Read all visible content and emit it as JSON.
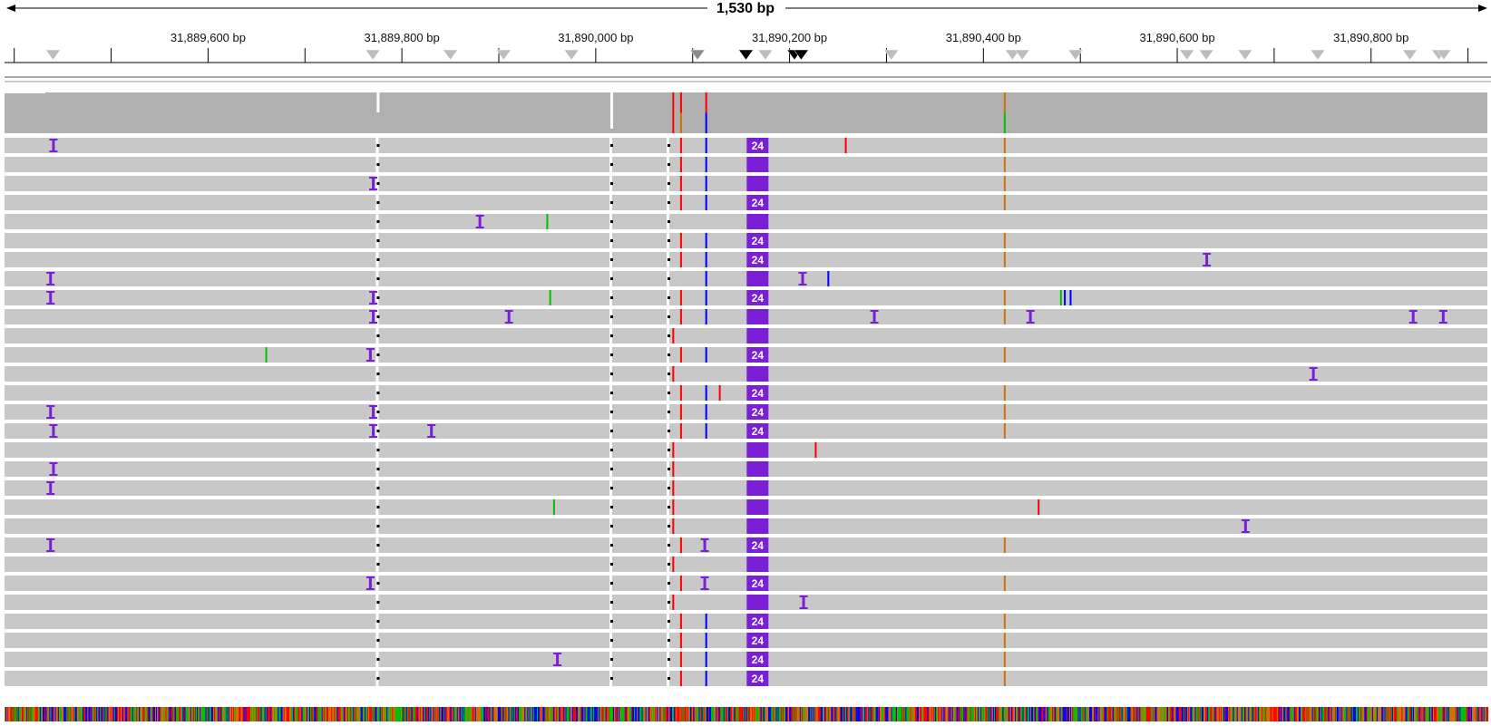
{
  "locus": {
    "span_label": "1,530 bp",
    "start_bp": 31889390,
    "end_bp": 31890920,
    "tick_labels": [
      {
        "bp": 31889600,
        "label": "31,889,600 bp"
      },
      {
        "bp": 31889800,
        "label": "31,889,800 bp"
      },
      {
        "bp": 31890000,
        "label": "31,890,000 bp"
      },
      {
        "bp": 31890200,
        "label": "31,890,200 bp"
      },
      {
        "bp": 31890400,
        "label": "31,890,400 bp"
      },
      {
        "bp": 31890600,
        "label": "31,890,600 bp"
      },
      {
        "bp": 31890800,
        "label": "31,890,800 bp"
      }
    ]
  },
  "colors": {
    "read": "#c8c8c8",
    "coverage": "#b0b0b0",
    "insertion": "#7a1fd6",
    "mismatch_A": "#00c000",
    "mismatch_C": "#0000ff",
    "mismatch_G": "#d17105",
    "mismatch_T": "#ff0000",
    "feature_marker_light": "#bdbdbd",
    "feature_marker_dark": "#000000"
  },
  "feature_markers": {
    "light": [
      31889440,
      31889770,
      31889850,
      31889905,
      31889975,
      31890175,
      31890305,
      31890430,
      31890440,
      31890495,
      31890610,
      31890630,
      31890670,
      31890745,
      31890840,
      31890870,
      31890875
    ],
    "grey": [
      31890105
    ],
    "dark": [
      31890155,
      31890205,
      31890212
    ]
  },
  "coverage_track": {
    "marks": [
      {
        "bp": 31890080,
        "base": "T"
      },
      {
        "bp": 31890088,
        "base": "T"
      },
      {
        "bp": 31890088,
        "base": "G"
      },
      {
        "bp": 31890114,
        "base": "T"
      },
      {
        "bp": 31890114,
        "base": "C"
      },
      {
        "bp": 31890422,
        "base": "G"
      },
      {
        "bp": 31890422,
        "base": "A"
      }
    ],
    "gaps": [
      31889775,
      31890016
    ]
  },
  "alignment": {
    "large_insertion_label": "24",
    "large_insertion_bp": 31890167,
    "rows": [
      {
        "big": "24",
        "ins": [
          31889440
        ],
        "mm": [
          [
            31890088,
            "T"
          ],
          [
            31890114,
            "C"
          ],
          [
            31890258,
            "T"
          ],
          [
            31890422,
            "G"
          ]
        ]
      },
      {
        "big": "",
        "ins": [],
        "mm": [
          [
            31890088,
            "T"
          ],
          [
            31890114,
            "C"
          ],
          [
            31890422,
            "G"
          ]
        ]
      },
      {
        "big": "",
        "ins": [
          31889770
        ],
        "mm": [
          [
            31890088,
            "T"
          ],
          [
            31890114,
            "C"
          ],
          [
            31890422,
            "G"
          ]
        ]
      },
      {
        "big": "24",
        "ins": [],
        "mm": [
          [
            31890088,
            "T"
          ],
          [
            31890114,
            "C"
          ],
          [
            31890422,
            "G"
          ]
        ]
      },
      {
        "big": "",
        "ins": [
          31889880
        ],
        "mm": [
          [
            31889950,
            "A"
          ]
        ]
      },
      {
        "big": "24",
        "ins": [],
        "mm": [
          [
            31890088,
            "T"
          ],
          [
            31890114,
            "C"
          ],
          [
            31890422,
            "G"
          ]
        ]
      },
      {
        "big": "24",
        "ins": [
          31890630
        ],
        "mm": [
          [
            31890088,
            "T"
          ],
          [
            31890114,
            "C"
          ],
          [
            31890422,
            "G"
          ]
        ]
      },
      {
        "big": "",
        "ins": [
          31889437,
          31890213
        ],
        "mm": [
          [
            31890114,
            "C"
          ],
          [
            31890240,
            "C"
          ]
        ]
      },
      {
        "big": "24",
        "ins": [
          31889437,
          31889770
        ],
        "mm": [
          [
            31889953,
            "A"
          ],
          [
            31890088,
            "T"
          ],
          [
            31890114,
            "C"
          ],
          [
            31890422,
            "G"
          ],
          [
            31890480,
            "A"
          ],
          [
            31890484,
            "C"
          ],
          [
            31890490,
            "C"
          ]
        ]
      },
      {
        "big": "",
        "ins": [
          31889770,
          31889910,
          31890287,
          31890448,
          31890843,
          31890874
        ],
        "mm": [
          [
            31890088,
            "T"
          ],
          [
            31890114,
            "C"
          ],
          [
            31890422,
            "G"
          ]
        ]
      },
      {
        "big": "",
        "ins": [],
        "mm": [
          [
            31890080,
            "T"
          ]
        ]
      },
      {
        "big": "24",
        "ins": [
          31889767
        ],
        "mm": [
          [
            31889660,
            "A"
          ],
          [
            31890088,
            "T"
          ],
          [
            31890114,
            "C"
          ],
          [
            31890422,
            "G"
          ]
        ]
      },
      {
        "big": "",
        "ins": [
          31890740
        ],
        "mm": [
          [
            31890080,
            "T"
          ]
        ]
      },
      {
        "big": "24",
        "ins": [],
        "mm": [
          [
            31890088,
            "T"
          ],
          [
            31890114,
            "C"
          ],
          [
            31890128,
            "T"
          ],
          [
            31890422,
            "G"
          ]
        ]
      },
      {
        "big": "24",
        "ins": [
          31889437,
          31889770
        ],
        "mm": [
          [
            31890088,
            "T"
          ],
          [
            31890114,
            "C"
          ],
          [
            31890422,
            "G"
          ]
        ]
      },
      {
        "big": "24",
        "ins": [
          31889440,
          31889770,
          31889830
        ],
        "mm": [
          [
            31890088,
            "T"
          ],
          [
            31890114,
            "C"
          ],
          [
            31890422,
            "G"
          ]
        ]
      },
      {
        "big": "",
        "ins": [],
        "mm": [
          [
            31890080,
            "T"
          ],
          [
            31890227,
            "T"
          ]
        ]
      },
      {
        "big": "",
        "ins": [
          31889440
        ],
        "mm": [
          [
            31890080,
            "T"
          ]
        ]
      },
      {
        "big": "",
        "ins": [
          31889437
        ],
        "mm": [
          [
            31890080,
            "T"
          ]
        ]
      },
      {
        "big": "",
        "ins": [],
        "mm": [
          [
            31889957,
            "A"
          ],
          [
            31890080,
            "T"
          ],
          [
            31890457,
            "T"
          ]
        ]
      },
      {
        "big": "",
        "ins": [
          31890670
        ],
        "mm": [
          [
            31890080,
            "T"
          ]
        ]
      },
      {
        "big": "24",
        "ins": [
          31889437,
          31890112
        ],
        "mm": [
          [
            31890088,
            "T"
          ],
          [
            31890422,
            "G"
          ]
        ]
      },
      {
        "big": "",
        "ins": [],
        "mm": [
          [
            31890080,
            "T"
          ]
        ]
      },
      {
        "big": "24",
        "ins": [
          31889767,
          31890112
        ],
        "mm": [
          [
            31890088,
            "T"
          ],
          [
            31890422,
            "G"
          ]
        ]
      },
      {
        "big": "",
        "ins": [
          31890214
        ],
        "mm": [
          [
            31890080,
            "T"
          ],
          [
            31890165,
            "T"
          ]
        ]
      },
      {
        "big": "24",
        "ins": [],
        "mm": [
          [
            31890088,
            "T"
          ],
          [
            31890114,
            "C"
          ],
          [
            31890422,
            "G"
          ]
        ]
      },
      {
        "big": "24",
        "ins": [],
        "mm": [
          [
            31890088,
            "T"
          ],
          [
            31890114,
            "C"
          ],
          [
            31890422,
            "G"
          ]
        ]
      },
      {
        "big": "24",
        "ins": [
          31889960
        ],
        "mm": [
          [
            31890088,
            "T"
          ],
          [
            31890114,
            "C"
          ],
          [
            31890422,
            "G"
          ]
        ]
      },
      {
        "big": "24",
        "ins": [],
        "mm": [
          [
            31890088,
            "T"
          ],
          [
            31890114,
            "C"
          ],
          [
            31890422,
            "G"
          ]
        ]
      }
    ]
  }
}
